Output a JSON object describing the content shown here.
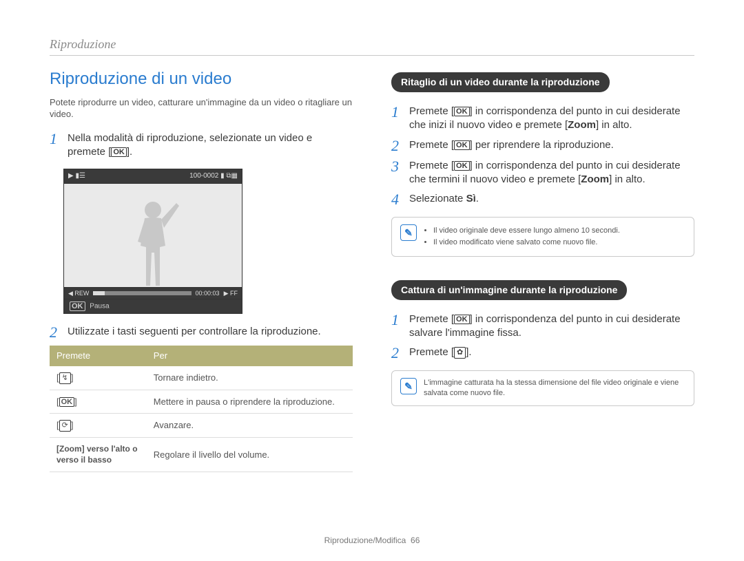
{
  "header": {
    "section": "Riproduzione"
  },
  "title": "Riproduzione di un video",
  "intro": "Potete riprodurre un video, catturare un'immagine da un video o ritagliare un video.",
  "left_steps": [
    {
      "num": "1",
      "text_before": "Nella modalità di riproduzione, selezionate un video e premete [",
      "icon": "OK",
      "text_after": "]."
    },
    {
      "num": "2",
      "text_before": "Utilizzate i tasti seguenti per controllare la riproduzione.",
      "icon": "",
      "text_after": ""
    }
  ],
  "lcd": {
    "top_left": "▶  ▮☰",
    "top_right": "100-0002 ▮ ⧉▦",
    "time": "00:00:03",
    "rew": "◀ REW",
    "ff": "▶ FF",
    "caption_icon": "OK",
    "caption": "Pausa"
  },
  "table": {
    "head": [
      "Premete",
      "Per"
    ],
    "rows": [
      {
        "key_icon": "↯",
        "key_text": "",
        "desc": "Tornare indietro."
      },
      {
        "key_icon": "OK",
        "key_text": "",
        "desc": "Mettere in pausa o riprendere la riproduzione."
      },
      {
        "key_icon": "⟳",
        "key_text": "",
        "desc": "Avanzare."
      },
      {
        "key_icon": "",
        "key_text": "[Zoom] verso l'alto o verso il basso",
        "desc": "Regolare il livello del volume."
      }
    ]
  },
  "section_a": {
    "title": "Ritaglio di un video durante la riproduzione",
    "steps": [
      {
        "num": "1",
        "parts": [
          "Premete [",
          "OK",
          "] in corrispondenza del punto in cui desiderate che inizi il nuovo video e premete [",
          "Zoom",
          "] in alto."
        ]
      },
      {
        "num": "2",
        "parts": [
          "Premete [",
          "OK",
          "] per riprendere la riproduzione."
        ]
      },
      {
        "num": "3",
        "parts": [
          "Premete [",
          "OK",
          "] in corrispondenza del punto in cui desiderate che termini il nuovo video e premete [",
          "Zoom",
          "] in alto."
        ]
      },
      {
        "num": "4",
        "parts": [
          "Selezionate ",
          "Sì",
          "."
        ]
      }
    ],
    "notes": [
      "Il video originale deve essere lungo almeno 10 secondi.",
      "Il video modificato viene salvato come nuovo file."
    ]
  },
  "section_b": {
    "title": "Cattura di un'immagine durante la riproduzione",
    "steps": [
      {
        "num": "1",
        "parts": [
          "Premete [",
          "OK",
          "] in corrispondenza del punto in cui desiderate salvare l'immagine fissa."
        ]
      },
      {
        "num": "2",
        "parts": [
          "Premete [",
          "✿",
          "]."
        ]
      }
    ],
    "note": "L'immagine catturata ha la stessa dimensione del file video originale e viene salvata come nuovo file."
  },
  "footer": {
    "text": "Riproduzione/Modifica",
    "page": "66"
  }
}
